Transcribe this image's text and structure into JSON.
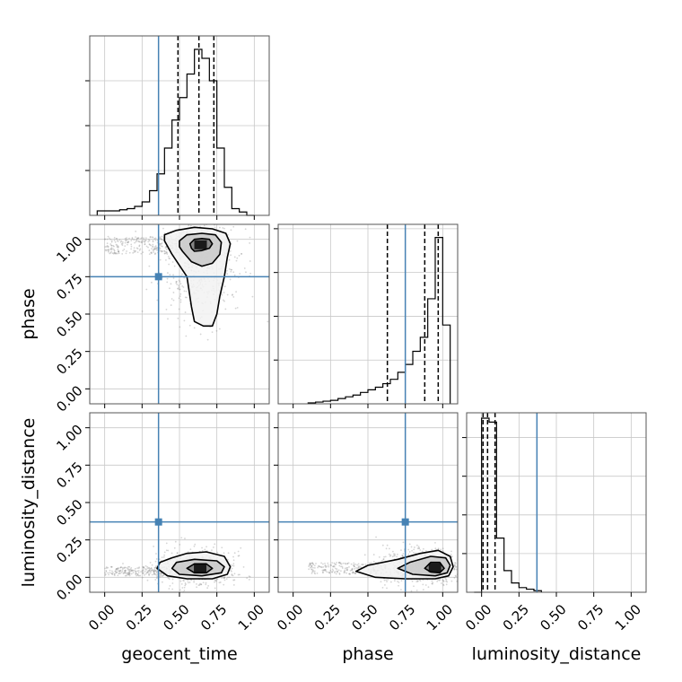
{
  "chart_data": {
    "type": "corner",
    "parameters": [
      "geocent_time",
      "phase",
      "luminosity_distance"
    ],
    "axis_range": [
      -0.1,
      1.1
    ],
    "tick_values": [
      0.0,
      0.25,
      0.5,
      0.75,
      1.0
    ],
    "tick_labels": [
      "0.00",
      "0.25",
      "0.50",
      "0.75",
      "1.00"
    ],
    "grid": true,
    "colors": {
      "truth": "#4682b4",
      "hist": "#000000",
      "points": "#888888",
      "contour": "#000000",
      "frame": "#555555",
      "grid": "#c8c8c8"
    },
    "truths": {
      "geocent_time": 0.36,
      "phase": 0.75,
      "luminosity_distance": 0.37
    },
    "histograms": [
      {
        "parameter": "geocent_time",
        "bins": [
          -0.05,
          0.0,
          0.05,
          0.1,
          0.15,
          0.2,
          0.25,
          0.3,
          0.35,
          0.4,
          0.45,
          0.5,
          0.55,
          0.6,
          0.65,
          0.7,
          0.75,
          0.8,
          0.85,
          0.9,
          0.95,
          1.0
        ],
        "counts": [
          4,
          4,
          4,
          5,
          6,
          8,
          12,
          22,
          37,
          60,
          85,
          105,
          126,
          148,
          140,
          120,
          60,
          25,
          6,
          3,
          0
        ],
        "quantiles": [
          0.49,
          0.63,
          0.73
        ],
        "ymax": 160
      },
      {
        "parameter": "phase",
        "bins": [
          0.1,
          0.15,
          0.2,
          0.25,
          0.3,
          0.35,
          0.4,
          0.45,
          0.5,
          0.55,
          0.6,
          0.65,
          0.7,
          0.75,
          0.8,
          0.85,
          0.9,
          0.95,
          1.0,
          1.05
        ],
        "counts": [
          1,
          2,
          3,
          4,
          6,
          8,
          10,
          13,
          16,
          19,
          23,
          28,
          36,
          45,
          60,
          76,
          120,
          190,
          90
        ],
        "quantiles": [
          0.63,
          0.88,
          0.97
        ],
        "ymax": 205
      },
      {
        "parameter": "luminosity_distance",
        "bins": [
          -0.05,
          0.0,
          0.05,
          0.1,
          0.15,
          0.2,
          0.25,
          0.3,
          0.35,
          0.4
        ],
        "counts": [
          0,
          225,
          220,
          70,
          28,
          12,
          6,
          4,
          2
        ],
        "quantiles": [
          0.01,
          0.04,
          0.09
        ],
        "ymax": 232
      }
    ],
    "scatter_panels": [
      {
        "x": "geocent_time",
        "y": "phase",
        "cluster_center": [
          0.62,
          0.88
        ],
        "cluster_spread": [
          0.13,
          0.2
        ],
        "contours": [
          {
            "level": "inner",
            "points": [
              [
                0.6,
                0.92
              ],
              [
                0.65,
                0.925
              ],
              [
                0.7,
                0.94
              ],
              [
                0.72,
                0.97
              ],
              [
                0.7,
                1.0
              ],
              [
                0.65,
                1.005
              ],
              [
                0.6,
                1.0
              ],
              [
                0.57,
                0.97
              ],
              [
                0.58,
                0.94
              ]
            ]
          },
          {
            "level": "middle",
            "points": [
              [
                0.52,
                0.92
              ],
              [
                0.58,
                0.85
              ],
              [
                0.65,
                0.82
              ],
              [
                0.72,
                0.84
              ],
              [
                0.77,
                0.9
              ],
              [
                0.78,
                0.98
              ],
              [
                0.74,
                1.03
              ],
              [
                0.65,
                1.04
              ],
              [
                0.55,
                1.03
              ],
              [
                0.5,
                0.99
              ],
              [
                0.5,
                0.95
              ]
            ]
          },
          {
            "level": "outer",
            "points": [
              [
                0.4,
                0.99
              ],
              [
                0.45,
                0.9
              ],
              [
                0.55,
                0.75
              ],
              [
                0.58,
                0.55
              ],
              [
                0.6,
                0.45
              ],
              [
                0.66,
                0.42
              ],
              [
                0.72,
                0.42
              ],
              [
                0.75,
                0.5
              ],
              [
                0.77,
                0.62
              ],
              [
                0.8,
                0.75
              ],
              [
                0.82,
                0.88
              ],
              [
                0.84,
                0.97
              ],
              [
                0.81,
                1.04
              ],
              [
                0.72,
                1.07
              ],
              [
                0.6,
                1.08
              ],
              [
                0.48,
                1.06
              ],
              [
                0.4,
                1.03
              ]
            ]
          }
        ]
      },
      {
        "x": "geocent_time",
        "y": "luminosity_distance",
        "cluster_center": [
          0.6,
          0.06
        ],
        "cluster_spread": [
          0.14,
          0.06
        ],
        "contours": [
          {
            "level": "inner",
            "points": [
              [
                0.55,
                0.06
              ],
              [
                0.6,
                0.03
              ],
              [
                0.68,
                0.03
              ],
              [
                0.72,
                0.06
              ],
              [
                0.68,
                0.09
              ],
              [
                0.6,
                0.09
              ]
            ]
          },
          {
            "level": "middle",
            "points": [
              [
                0.45,
                0.06
              ],
              [
                0.5,
                0.02
              ],
              [
                0.65,
                0.01
              ],
              [
                0.78,
                0.03
              ],
              [
                0.8,
                0.07
              ],
              [
                0.75,
                0.11
              ],
              [
                0.6,
                0.12
              ],
              [
                0.48,
                0.1
              ]
            ]
          },
          {
            "level": "outer",
            "points": [
              [
                0.35,
                0.06
              ],
              [
                0.42,
                0.01
              ],
              [
                0.55,
                -0.01
              ],
              [
                0.72,
                -0.01
              ],
              [
                0.82,
                0.02
              ],
              [
                0.84,
                0.07
              ],
              [
                0.8,
                0.14
              ],
              [
                0.68,
                0.17
              ],
              [
                0.55,
                0.16
              ],
              [
                0.45,
                0.13
              ],
              [
                0.37,
                0.1
              ]
            ]
          }
        ]
      },
      {
        "x": "phase",
        "y": "luminosity_distance",
        "cluster_center": [
          0.88,
          0.07
        ],
        "cluster_spread": [
          0.16,
          0.06
        ],
        "contours": [
          {
            "level": "inner",
            "points": [
              [
                0.88,
                0.06
              ],
              [
                0.92,
                0.035
              ],
              [
                0.98,
                0.03
              ],
              [
                1.01,
                0.06
              ],
              [
                0.98,
                0.1
              ],
              [
                0.92,
                0.1
              ]
            ]
          },
          {
            "level": "middle",
            "points": [
              [
                0.7,
                0.06
              ],
              [
                0.8,
                0.02
              ],
              [
                0.95,
                0.01
              ],
              [
                1.03,
                0.03
              ],
              [
                1.05,
                0.08
              ],
              [
                1.02,
                0.13
              ],
              [
                0.92,
                0.14
              ],
              [
                0.78,
                0.1
              ]
            ]
          },
          {
            "level": "outer",
            "points": [
              [
                0.42,
                0.04
              ],
              [
                0.55,
                0.0
              ],
              [
                0.75,
                -0.01
              ],
              [
                0.95,
                -0.01
              ],
              [
                1.04,
                0.01
              ],
              [
                1.07,
                0.07
              ],
              [
                1.05,
                0.14
              ],
              [
                0.97,
                0.18
              ],
              [
                0.85,
                0.16
              ],
              [
                0.7,
                0.12
              ],
              [
                0.5,
                0.08
              ]
            ]
          }
        ]
      }
    ]
  }
}
